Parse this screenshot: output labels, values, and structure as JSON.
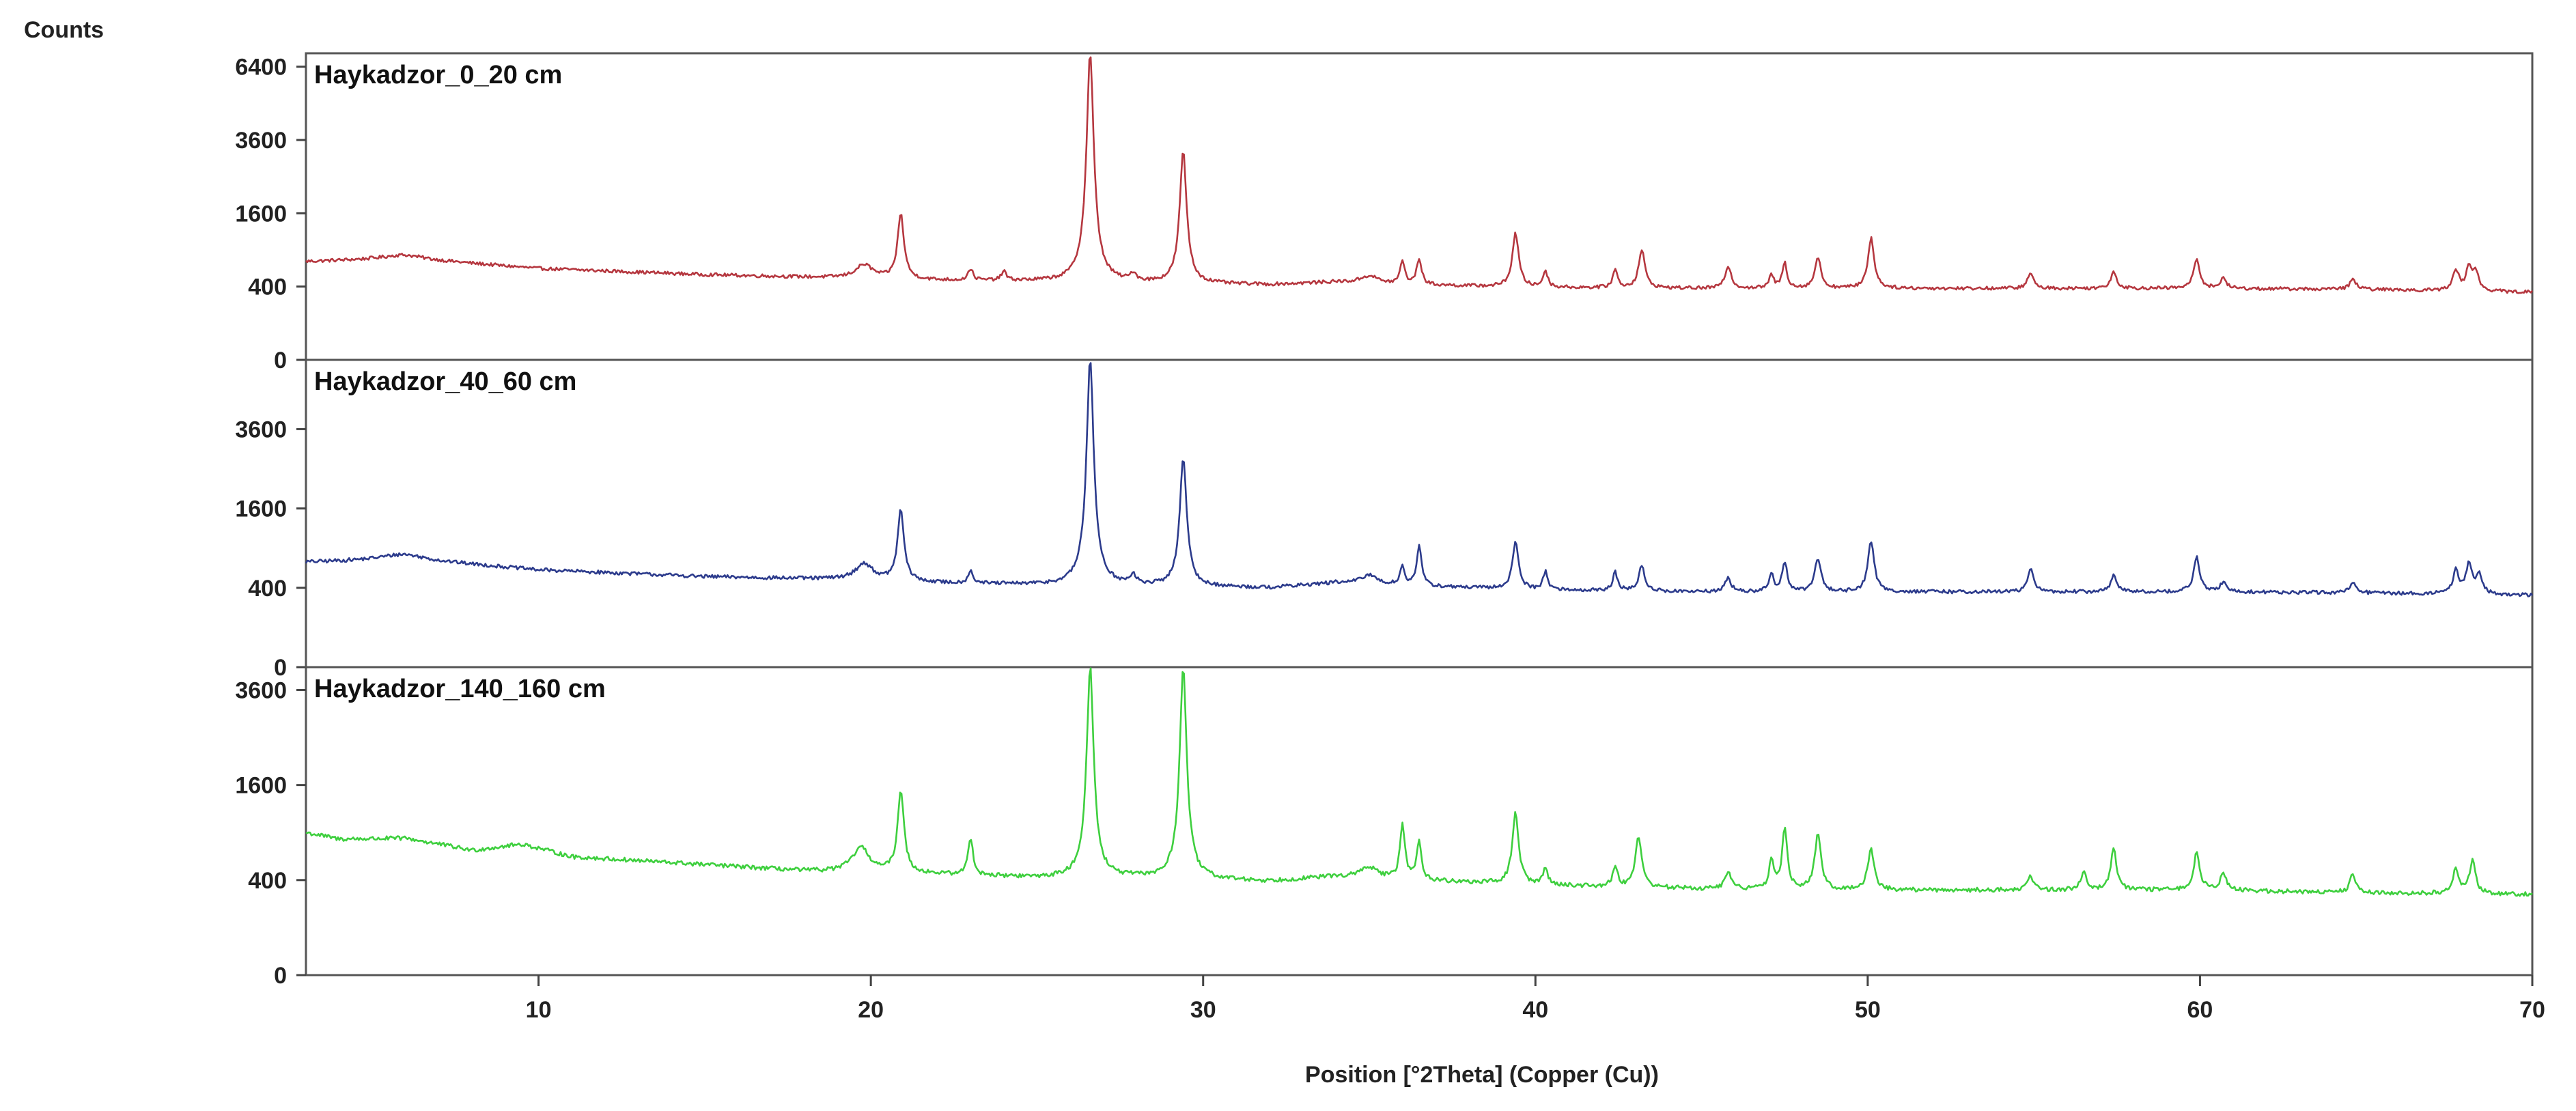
{
  "chart_data": {
    "type": "line",
    "y_axis_label": "Counts",
    "x_axis_label": "Position [°2Theta]  (Copper (Cu))",
    "xlim": [
      3,
      70
    ],
    "x_ticks": [
      10,
      20,
      30,
      40,
      50,
      60,
      70
    ],
    "y_scale": "sqrt",
    "grid": false,
    "panels": [
      {
        "title": "Haykadzor_0_20 cm",
        "color": "#b5373f",
        "ylim": [
          0,
          7000
        ],
        "y_ticks": [
          0,
          400,
          1600,
          3600,
          6400
        ],
        "baseline": [
          [
            3,
            720
          ],
          [
            6,
            760
          ],
          [
            10,
            620
          ],
          [
            15,
            540
          ],
          [
            19,
            500
          ],
          [
            22,
            470
          ],
          [
            25,
            460
          ],
          [
            28,
            440
          ],
          [
            32,
            420
          ],
          [
            34,
            450
          ],
          [
            36,
            420
          ],
          [
            40,
            390
          ],
          [
            45,
            380
          ],
          [
            50,
            380
          ],
          [
            55,
            380
          ],
          [
            60,
            380
          ],
          [
            65,
            370
          ],
          [
            70,
            340
          ]
        ],
        "peaks": [
          [
            5.9,
            60,
            0.8
          ],
          [
            19.8,
            180,
            0.3
          ],
          [
            20.9,
            1100,
            0.1
          ],
          [
            23.0,
            150,
            0.08
          ],
          [
            24.0,
            120,
            0.08
          ],
          [
            26.6,
            6600,
            0.1
          ],
          [
            27.9,
            100,
            0.1
          ],
          [
            29.4,
            2800,
            0.1
          ],
          [
            35.0,
            90,
            0.3
          ],
          [
            36.0,
            300,
            0.08
          ],
          [
            36.5,
            350,
            0.08
          ],
          [
            39.4,
            800,
            0.1
          ],
          [
            40.3,
            200,
            0.08
          ],
          [
            42.4,
            220,
            0.08
          ],
          [
            43.2,
            520,
            0.1
          ],
          [
            45.8,
            280,
            0.1
          ],
          [
            47.1,
            150,
            0.08
          ],
          [
            47.5,
            320,
            0.08
          ],
          [
            48.5,
            400,
            0.1
          ],
          [
            50.1,
            720,
            0.1
          ],
          [
            54.9,
            180,
            0.1
          ],
          [
            57.4,
            200,
            0.1
          ],
          [
            59.9,
            380,
            0.1
          ],
          [
            60.7,
            120,
            0.1
          ],
          [
            64.6,
            120,
            0.1
          ],
          [
            67.7,
            250,
            0.1
          ],
          [
            68.1,
            300,
            0.1
          ],
          [
            68.3,
            200,
            0.1
          ]
        ]
      },
      {
        "title": "Haykadzor_40_60 cm",
        "color": "#2c3b8c",
        "ylim": [
          0,
          6000
        ],
        "y_ticks": [
          0,
          400,
          1600,
          3600
        ],
        "baseline": [
          [
            3,
            700
          ],
          [
            6,
            740
          ],
          [
            10,
            600
          ],
          [
            15,
            520
          ],
          [
            19,
            490
          ],
          [
            22,
            450
          ],
          [
            25,
            430
          ],
          [
            28,
            420
          ],
          [
            32,
            400
          ],
          [
            34,
            450
          ],
          [
            36,
            420
          ],
          [
            40,
            380
          ],
          [
            45,
            360
          ],
          [
            50,
            360
          ],
          [
            55,
            360
          ],
          [
            60,
            360
          ],
          [
            65,
            350
          ],
          [
            70,
            330
          ]
        ],
        "peaks": [
          [
            5.9,
            70,
            0.8
          ],
          [
            19.8,
            200,
            0.3
          ],
          [
            20.9,
            1100,
            0.1
          ],
          [
            23.0,
            150,
            0.08
          ],
          [
            26.6,
            5600,
            0.1
          ],
          [
            27.9,
            100,
            0.1
          ],
          [
            29.4,
            2400,
            0.1
          ],
          [
            35.0,
            100,
            0.3
          ],
          [
            36.0,
            220,
            0.08
          ],
          [
            36.5,
            500,
            0.08
          ],
          [
            39.4,
            600,
            0.1
          ],
          [
            40.3,
            200,
            0.08
          ],
          [
            42.4,
            200,
            0.08
          ],
          [
            43.2,
            280,
            0.1
          ],
          [
            45.8,
            150,
            0.1
          ],
          [
            47.1,
            200,
            0.08
          ],
          [
            47.5,
            350,
            0.08
          ],
          [
            48.5,
            400,
            0.1
          ],
          [
            50.1,
            650,
            0.1
          ],
          [
            54.9,
            250,
            0.1
          ],
          [
            57.4,
            180,
            0.1
          ],
          [
            59.9,
            400,
            0.1
          ],
          [
            60.7,
            100,
            0.1
          ],
          [
            64.6,
            100,
            0.1
          ],
          [
            67.7,
            250,
            0.1
          ],
          [
            68.1,
            350,
            0.1
          ],
          [
            68.4,
            200,
            0.1
          ]
        ]
      },
      {
        "title": "Haykadzor_140_160 cm",
        "color": "#3ecf3e",
        "ylim": [
          0,
          4200
        ],
        "y_ticks": [
          0,
          400,
          1600,
          3600
        ],
        "baseline": [
          [
            3,
            900
          ],
          [
            4,
            820
          ],
          [
            6,
            830
          ],
          [
            8,
            690
          ],
          [
            9.5,
            760
          ],
          [
            11,
            620
          ],
          [
            13,
            580
          ],
          [
            15,
            540
          ],
          [
            18,
            480
          ],
          [
            22,
            450
          ],
          [
            25,
            420
          ],
          [
            28,
            420
          ],
          [
            32,
            390
          ],
          [
            34,
            430
          ],
          [
            36,
            400
          ],
          [
            40,
            360
          ],
          [
            45,
            330
          ],
          [
            50,
            320
          ],
          [
            55,
            320
          ],
          [
            60,
            320
          ],
          [
            65,
            300
          ],
          [
            70,
            290
          ]
        ],
        "peaks": [
          [
            19.7,
            250,
            0.3
          ],
          [
            20.9,
            1050,
            0.1
          ],
          [
            23.0,
            400,
            0.08
          ],
          [
            26.6,
            3800,
            0.1
          ],
          [
            29.4,
            3800,
            0.1
          ],
          [
            35.0,
            100,
            0.3
          ],
          [
            36.0,
            600,
            0.08
          ],
          [
            36.5,
            380,
            0.08
          ],
          [
            39.4,
            800,
            0.1
          ],
          [
            40.3,
            150,
            0.08
          ],
          [
            42.4,
            180,
            0.08
          ],
          [
            43.1,
            520,
            0.1
          ],
          [
            45.8,
            150,
            0.1
          ],
          [
            47.1,
            250,
            0.08
          ],
          [
            47.5,
            650,
            0.08
          ],
          [
            48.5,
            550,
            0.1
          ],
          [
            50.1,
            400,
            0.1
          ],
          [
            54.9,
            120,
            0.1
          ],
          [
            56.5,
            150,
            0.1
          ],
          [
            57.4,
            380,
            0.1
          ],
          [
            59.9,
            350,
            0.1
          ],
          [
            60.7,
            150,
            0.1
          ],
          [
            64.6,
            150,
            0.1
          ],
          [
            67.7,
            200,
            0.1
          ],
          [
            68.2,
            280,
            0.1
          ]
        ]
      }
    ]
  }
}
